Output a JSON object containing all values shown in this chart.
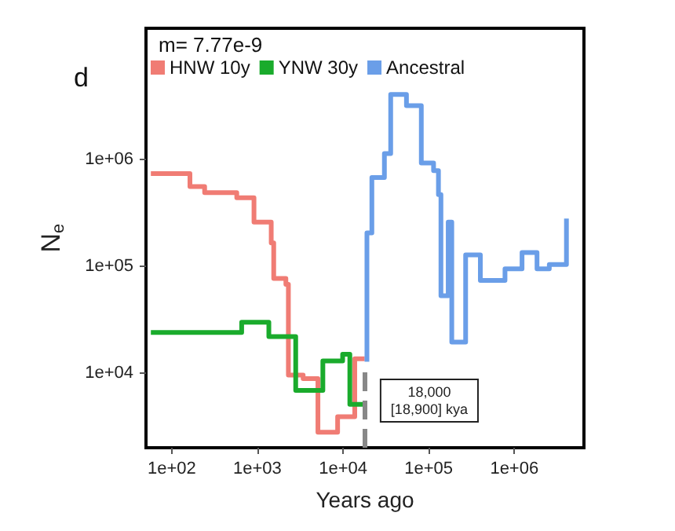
{
  "chart_data": {
    "type": "step",
    "title": "d",
    "legend_title": "m= 7.77e-9",
    "xlabel": "Years ago",
    "ylabel": "N$_{e}$",
    "log": "xy",
    "grid": false,
    "legend": "top left",
    "marker": "none",
    "line_style": "solid",
    "xlim": [
      50,
      6500000
    ],
    "ylim": [
      2000,
      17000000
    ],
    "xticks": [
      {
        "value": 100,
        "label": "1e+02"
      },
      {
        "value": 1000,
        "label": "1e+03"
      },
      {
        "value": 10000,
        "label": "1e+04"
      },
      {
        "value": 100000,
        "label": "1e+05"
      },
      {
        "value": 1000000,
        "label": "1e+06"
      }
    ],
    "yticks": [
      {
        "value": 10000,
        "label": "1e+04"
      },
      {
        "value": 100000,
        "label": "1e+05"
      },
      {
        "value": 1000000,
        "label": "1e+06"
      }
    ],
    "series": [
      {
        "name": "HNW 10y",
        "color": "#f07c74",
        "x": [
          57,
          163,
          242,
          574,
          912,
          1450,
          1550,
          2150,
          2300,
          3420,
          5090,
          8640,
          13700,
          17900
        ],
        "values": [
          740000,
          560000,
          490000,
          440000,
          260000,
          166000,
          77000,
          68000,
          9600,
          8900,
          2800,
          3900,
          13600,
          13600
        ]
      },
      {
        "name": "YNW 30y",
        "color": "#1aab2c",
        "x": [
          57,
          655,
          1360,
          2800,
          5810,
          9890,
          12000,
          17900
        ],
        "values": [
          24000,
          30000,
          22000,
          6900,
          13000,
          15000,
          5100,
          5100
        ]
      },
      {
        "name": "Ancestral",
        "color": "#6a9ee8",
        "x": [
          19000,
          19000,
          21700,
          30400,
          36000,
          55000,
          82000,
          114000,
          130000,
          139000,
          169000,
          186000,
          270000,
          401000,
          778000,
          1230000,
          1840000,
          2560000,
          4060000
        ],
        "values": [
          12800,
          206000,
          680000,
          1140000,
          4070000,
          3200000,
          930000,
          790000,
          470000,
          53000,
          260000,
          19500,
          128000,
          74000,
          95000,
          135000,
          95000,
          104000,
          280000
        ]
      }
    ],
    "ref_lines": [
      {
        "axis": "x",
        "value": 18000,
        "label": "18,000\n[18,900] kya",
        "color": "#888888",
        "line_style": "dashed"
      }
    ]
  }
}
